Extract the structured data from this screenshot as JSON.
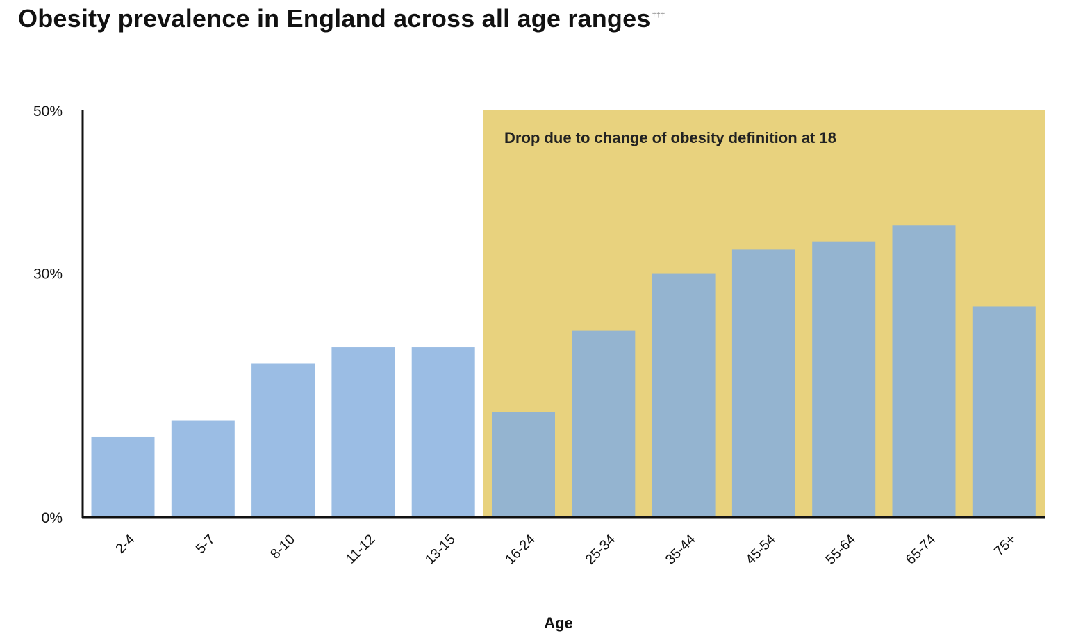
{
  "chart_data": {
    "type": "bar",
    "title": "Obesity prevalence in England across all age ranges",
    "title_superscript": "†††",
    "xlabel": "Age",
    "ylabel": "",
    "ylim": [
      0,
      50
    ],
    "yticks": [
      0,
      30,
      50
    ],
    "ytick_labels": [
      "0%",
      "30%",
      "50%"
    ],
    "categories": [
      "2-4",
      "5-7",
      "8-10",
      "11-12",
      "13-15",
      "16-24",
      "25-34",
      "35-44",
      "45-54",
      "55-64",
      "65-74",
      "75+"
    ],
    "values": [
      9.9,
      11.9,
      18.9,
      20.9,
      20.9,
      12.9,
      22.9,
      29.9,
      32.9,
      33.9,
      35.9,
      25.9
    ],
    "grid": false,
    "legend": "none",
    "annotation": {
      "text": "Drop due to change of obesity definition at 18",
      "start_category": "16-24",
      "end_category": "75+"
    },
    "colors": {
      "child_bar": "#9bbde4",
      "adult_bar": "#94b4d0",
      "highlight": "#e8d27e",
      "axis": "#111111"
    }
  }
}
